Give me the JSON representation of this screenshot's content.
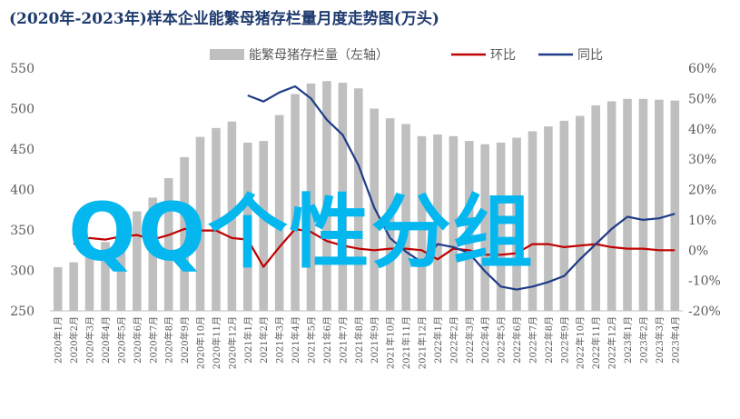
{
  "chart_data": {
    "type": "bar",
    "title": "(2020年-2023年)样本企业能繁母猪存栏量月度走势图(万头)",
    "categories": [
      "2020年1月",
      "2020年2月",
      "2020年3月",
      "2020年4月",
      "2020年5月",
      "2020年6月",
      "2020年7月",
      "2020年8月",
      "2020年9月",
      "2020年10月",
      "2020年11月",
      "2020年12月",
      "2021年1月",
      "2021年2月",
      "2021年3月",
      "2021年4月",
      "2021年5月",
      "2021年6月",
      "2021年7月",
      "2021年8月",
      "2021年9月",
      "2021年10月",
      "2021年11月",
      "2021年12月",
      "2022年1月",
      "2022年2月",
      "2022年3月",
      "2022年4月",
      "2022年5月",
      "2022年6月",
      "2022年7月",
      "2022年8月",
      "2022年9月",
      "2022年10月",
      "2022年11月",
      "2022年12月",
      "2023年1月",
      "2023年2月",
      "2023年3月",
      "2023年4月"
    ],
    "series": [
      {
        "name": "能繁母猪存栏量（左轴）",
        "axis": "left",
        "type": "bar",
        "values": [
          304,
          310,
          321,
          335,
          355,
          373,
          390,
          414,
          440,
          465,
          476,
          484,
          458,
          460,
          492,
          518,
          531,
          534,
          532,
          525,
          500,
          488,
          481,
          466,
          468,
          466,
          460,
          456,
          458,
          464,
          472,
          478,
          485,
          491,
          504,
          509,
          512,
          512,
          511,
          510
        ]
      },
      {
        "name": "环比",
        "axis": "right",
        "type": "line",
        "values": [
          null,
          2,
          4,
          3.5,
          4.5,
          5,
          3.5,
          5,
          7,
          6.5,
          6.5,
          4,
          3.5,
          -5.5,
          1,
          7,
          6,
          3,
          1.5,
          0.5,
          0,
          0.5,
          0.5,
          0,
          -3,
          0.5,
          0,
          -1.5,
          -1.5,
          -1,
          2,
          2,
          1,
          1.5,
          2,
          1,
          0.5,
          0.5,
          0,
          0
        ]
      },
      {
        "name": "同比",
        "axis": "right",
        "type": "line",
        "values": [
          null,
          null,
          null,
          null,
          null,
          null,
          null,
          null,
          null,
          null,
          null,
          null,
          51,
          49,
          52,
          54,
          50,
          43,
          38,
          28,
          14,
          4,
          -0.5,
          -4,
          2,
          1,
          -1,
          -7,
          -12,
          -13,
          -12,
          -10.5,
          -8.5,
          -3,
          2,
          7,
          11,
          10,
          10.5,
          12
        ]
      }
    ],
    "left_axis": {
      "ticks": [
        250,
        300,
        350,
        400,
        450,
        500,
        550
      ],
      "ylim": [
        250,
        550
      ]
    },
    "right_axis": {
      "ticks": [
        "-20%",
        "-10%",
        "0%",
        "10%",
        "20%",
        "30%",
        "40%",
        "50%",
        "60%"
      ],
      "ylim": [
        -20,
        60
      ]
    },
    "legend": [
      "能繁母猪存栏量（左轴）",
      "环比",
      "同比"
    ],
    "legend_position": "top-center",
    "grid": false,
    "colors": {
      "bar": "#bfbfbf",
      "mom": "#c00000",
      "yoy": "#1f3c88",
      "axis_text": "#595959",
      "title": "#1f3b6e"
    }
  },
  "overlay_text": "QQ个性分组",
  "overlay_color": "#05b7ef"
}
